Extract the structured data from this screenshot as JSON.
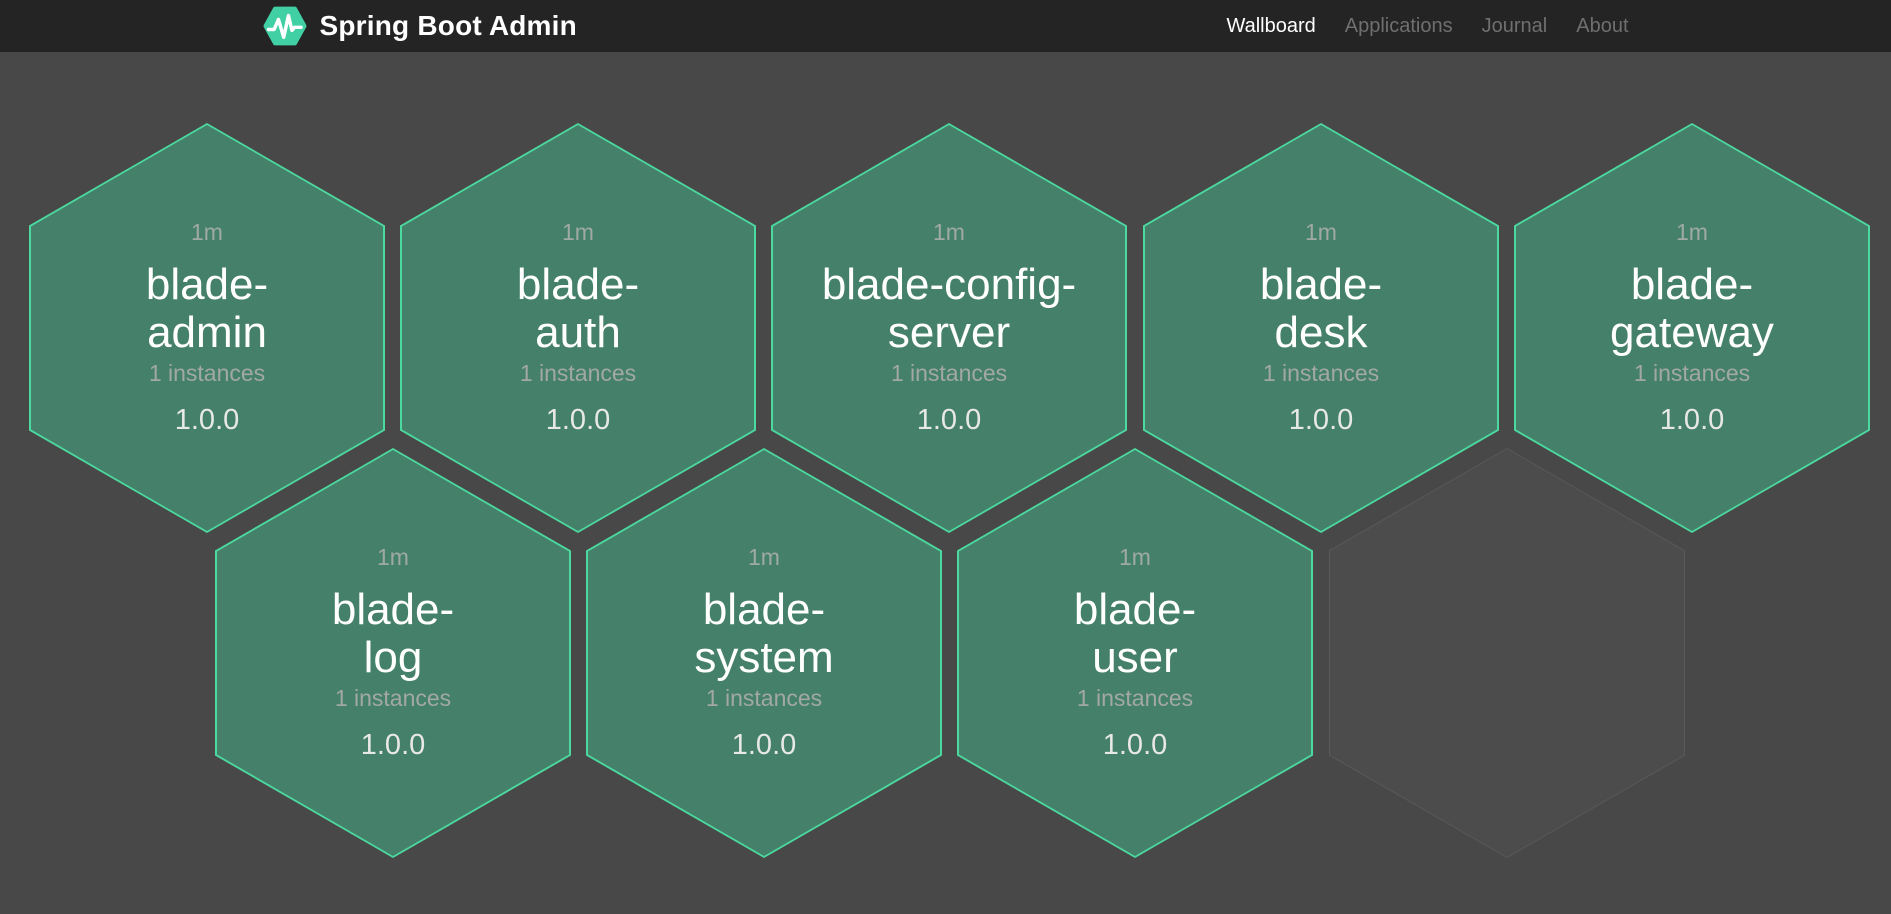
{
  "header": {
    "brand": "Spring Boot Admin",
    "nav": [
      {
        "label": "Wallboard",
        "active": true
      },
      {
        "label": "Applications",
        "active": false
      },
      {
        "label": "Journal",
        "active": false
      },
      {
        "label": "About",
        "active": false
      }
    ]
  },
  "wallboard": {
    "tiles": [
      {
        "name": "blade-admin",
        "uptime": "1m",
        "instances": "1 instances",
        "version": "1.0.0",
        "status": "up"
      },
      {
        "name": "blade-auth",
        "uptime": "1m",
        "instances": "1 instances",
        "version": "1.0.0",
        "status": "up"
      },
      {
        "name": "blade-config-server",
        "uptime": "1m",
        "instances": "1 instances",
        "version": "1.0.0",
        "status": "up"
      },
      {
        "name": "blade-desk",
        "uptime": "1m",
        "instances": "1 instances",
        "version": "1.0.0",
        "status": "up"
      },
      {
        "name": "blade-gateway",
        "uptime": "1m",
        "instances": "1 instances",
        "version": "1.0.0",
        "status": "up"
      },
      {
        "name": "blade-log",
        "uptime": "1m",
        "instances": "1 instances",
        "version": "1.0.0",
        "status": "up"
      },
      {
        "name": "blade-system",
        "uptime": "1m",
        "instances": "1 instances",
        "version": "1.0.0",
        "status": "up"
      },
      {
        "name": "blade-user",
        "uptime": "1m",
        "instances": "1 instances",
        "version": "1.0.0",
        "status": "up"
      }
    ],
    "empty_slots": 1
  },
  "colors": {
    "background": "#484848",
    "header_background": "#242424",
    "tile_fill": "#45806A",
    "accent_green": "#4CD9A0",
    "logo_teal": "#41CFA4",
    "empty_border": "#5A5A5A",
    "empty_fill": "#4C4C4C"
  }
}
